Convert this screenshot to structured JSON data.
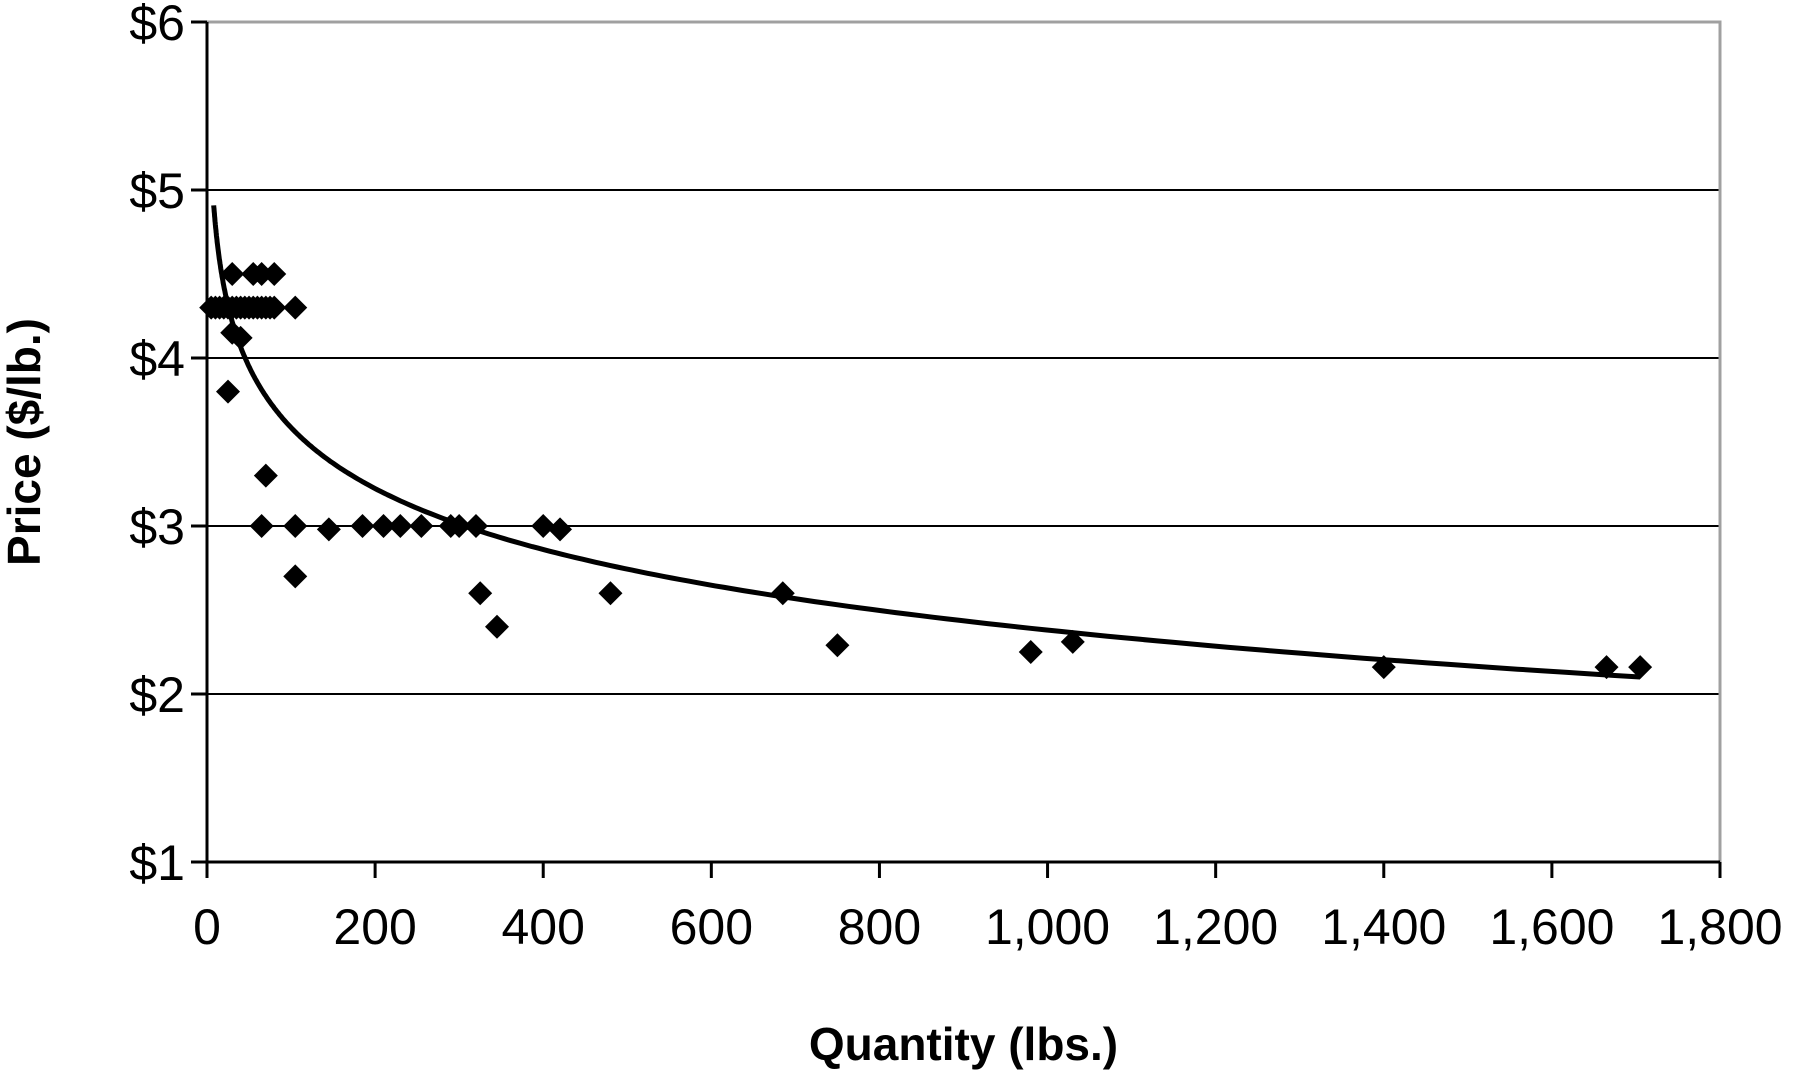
{
  "chart_data": {
    "type": "scatter",
    "title": "",
    "xlabel": "Quantity (lbs.)",
    "ylabel": "Price ($/lb.)",
    "xlim": [
      0,
      1800
    ],
    "ylim": [
      1,
      6
    ],
    "x_ticks": [
      "0",
      "200",
      "400",
      "600",
      "800",
      "1,000",
      "1,200",
      "1,400",
      "1,600",
      "1,800"
    ],
    "x_tick_values": [
      0,
      200,
      400,
      600,
      800,
      1000,
      1200,
      1400,
      1600,
      1800
    ],
    "y_ticks": [
      "$1",
      "$2",
      "$3",
      "$4",
      "$5",
      "$6"
    ],
    "y_tick_values": [
      1,
      2,
      3,
      4,
      5,
      6
    ],
    "grid": "horizontal",
    "legend": "none",
    "colors": {
      "marker": "#000000",
      "trendline": "#000000",
      "gridline": "#000000",
      "frame": "#a0a0a0"
    },
    "series": [
      {
        "marker": "diamond",
        "x": [
          5,
          10,
          15,
          20,
          25,
          30,
          35,
          40,
          45,
          50,
          55,
          60,
          65,
          70,
          75,
          80,
          105,
          30,
          55,
          65,
          80,
          30,
          40,
          25,
          70,
          65,
          105,
          145,
          185,
          210,
          230,
          255,
          290,
          300,
          320,
          400,
          420,
          105,
          325,
          345,
          480,
          685,
          750,
          980,
          1030,
          1400,
          1665,
          1705
        ],
        "y": [
          4.3,
          4.3,
          4.3,
          4.3,
          4.3,
          4.3,
          4.3,
          4.3,
          4.3,
          4.3,
          4.3,
          4.3,
          4.3,
          4.3,
          4.3,
          4.3,
          4.3,
          4.5,
          4.5,
          4.5,
          4.5,
          4.15,
          4.12,
          3.8,
          3.3,
          3.0,
          3.0,
          2.98,
          3.0,
          3.0,
          3.0,
          3.0,
          3.0,
          3.0,
          3.0,
          3.0,
          2.98,
          2.7,
          2.6,
          2.4,
          2.6,
          2.6,
          2.29,
          2.25,
          2.31,
          2.16,
          2.16,
          2.16
        ]
      }
    ],
    "trendline": {
      "type": "logarithmic",
      "x_range": [
        8,
        1705
      ]
    }
  }
}
